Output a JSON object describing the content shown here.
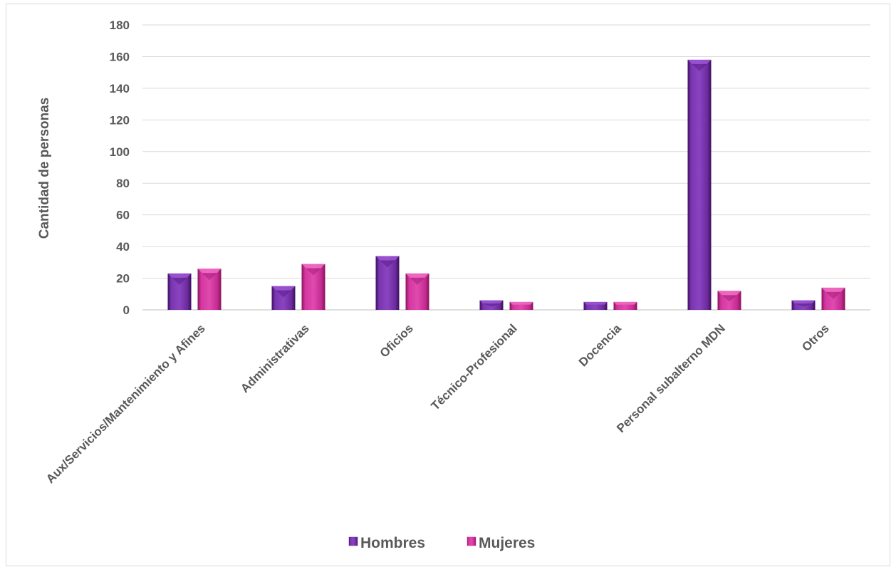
{
  "chart_data": {
    "type": "bar",
    "title": "",
    "xlabel": "",
    "ylabel": "Cantidad de personas",
    "ylim": [
      0,
      180
    ],
    "yticks": [
      0,
      20,
      40,
      60,
      80,
      100,
      120,
      140,
      160,
      180
    ],
    "grid": true,
    "legend_position": "bottom",
    "categories": [
      "Aux/Servicios/Mantenimiento y Afines",
      "Administrativas",
      "Oficios",
      "Técnico-Profesional",
      "Docencia",
      "Personal subalterno MDN",
      "Otros"
    ],
    "series": [
      {
        "name": "Hombres",
        "color": "#7030a0",
        "values": [
          23,
          15,
          34,
          6,
          5,
          158,
          6
        ]
      },
      {
        "name": "Mujeres",
        "color": "#cc2f9a",
        "values": [
          26,
          29,
          23,
          5,
          5,
          12,
          14
        ]
      }
    ]
  }
}
